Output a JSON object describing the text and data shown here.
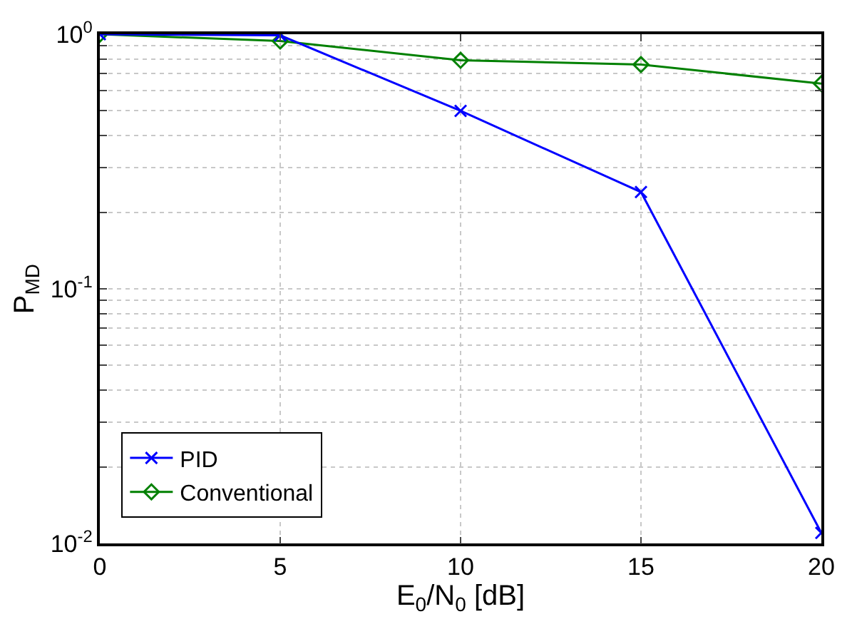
{
  "chart_data": {
    "type": "line",
    "xlabel": "E$_{0}$/N$_{0}$ [dB]",
    "ylabel": "P$_{MD}$",
    "x": [
      0,
      5,
      10,
      15,
      20
    ],
    "series": [
      {
        "name": "PID",
        "color": "#0000ff",
        "marker": "cross",
        "values": [
          1.0,
          0.99,
          0.5,
          0.24,
          0.011
        ]
      },
      {
        "name": "Conventional",
        "color": "#008000",
        "marker": "diamond",
        "values": [
          1.0,
          0.94,
          0.79,
          0.76,
          0.64
        ]
      }
    ],
    "log": "y",
    "xlim": [
      0,
      20
    ],
    "ylim": [
      0.01,
      1
    ],
    "xticks": [
      0,
      5,
      10,
      15,
      20
    ],
    "yticks": [
      {
        "value": 0.01,
        "label": "10$^{-2}$"
      },
      {
        "value": 0.02,
        "label": null
      },
      {
        "value": 0.03,
        "label": null
      },
      {
        "value": 0.04,
        "label": null
      },
      {
        "value": 0.05,
        "label": null
      },
      {
        "value": 0.06,
        "label": null
      },
      {
        "value": 0.07,
        "label": null
      },
      {
        "value": 0.08,
        "label": null
      },
      {
        "value": 0.09,
        "label": null
      },
      {
        "value": 0.1,
        "label": "10$^{-1}$"
      },
      {
        "value": 0.2,
        "label": null
      },
      {
        "value": 0.3,
        "label": null
      },
      {
        "value": 0.4,
        "label": null
      },
      {
        "value": 0.5,
        "label": null
      },
      {
        "value": 0.6,
        "label": null
      },
      {
        "value": 0.7,
        "label": null
      },
      {
        "value": 0.8,
        "label": null
      },
      {
        "value": 0.9,
        "label": null
      },
      {
        "value": 1,
        "label": "10$^{0}$"
      }
    ],
    "grid": true,
    "legend": "bottom left",
    "line_style": "solid"
  }
}
